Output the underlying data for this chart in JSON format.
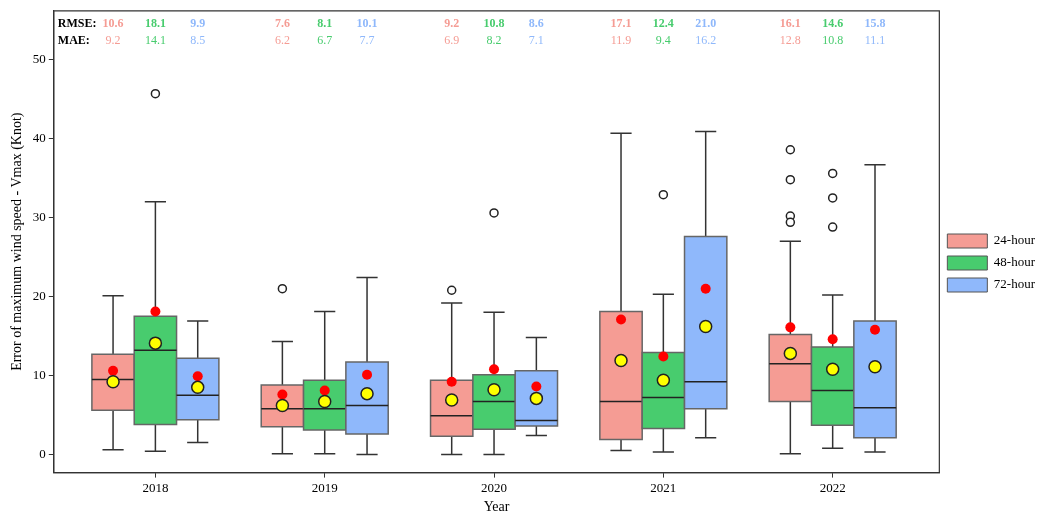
{
  "chart_data": {
    "type": "box",
    "xlabel": "Year",
    "ylabel": "Error of maximum wind speed - Vmax (Knot)",
    "categories": [
      "2018",
      "2019",
      "2020",
      "2021",
      "2022"
    ],
    "ylim": [
      -2.3,
      56.2
    ],
    "yticks": [
      0,
      10,
      20,
      30,
      40,
      50
    ],
    "grid": false,
    "legend": "right",
    "annotations": [
      "RMSE:",
      "MAE:",
      "10.6",
      "18.1",
      "9.9",
      "7.6",
      "8.1",
      "10.1",
      "9.2",
      "10.8",
      "8.6",
      "17.1",
      "12.4",
      "21.0",
      "16.1",
      "14.6",
      "15.8",
      "9.2",
      "14.1",
      "8.5",
      "6.2",
      "6.7",
      "7.7",
      "6.9",
      "8.2",
      "7.1",
      "11.9",
      "9.4",
      "16.2",
      "12.8",
      "10.8",
      "11.1"
    ],
    "series": [
      {
        "name": "24-hour",
        "type": "box",
        "color": "#f59c94",
        "boxes": [
          {
            "low": 0.6,
            "q1": 5.6,
            "median": 9.5,
            "q3": 12.7,
            "high": 20.1
          },
          {
            "low": 0.1,
            "q1": 3.5,
            "median": 5.8,
            "q3": 8.8,
            "high": 14.3,
            "outliers": [
              21.0
            ]
          },
          {
            "low": 0,
            "q1": 2.3,
            "median": 4.9,
            "q3": 9.4,
            "high": 19.2,
            "outliers": [
              20.8
            ]
          },
          {
            "low": 0.5,
            "q1": 1.9,
            "median": 6.7,
            "q3": 18.1,
            "high": 40.7
          },
          {
            "low": 0.1,
            "q1": 6.7,
            "median": 11.5,
            "q3": 15.2,
            "high": 27.0,
            "outliers": [
              38.6,
              34.8,
              30.2,
              29.4
            ]
          }
        ]
      },
      {
        "name": "48-hour",
        "type": "box",
        "color": "#48cc6e",
        "boxes": [
          {
            "low": 0.4,
            "q1": 3.8,
            "median": 13.2,
            "q3": 17.5,
            "high": 32.0,
            "outliers": [
              45.7
            ]
          },
          {
            "low": 0.1,
            "q1": 3.1,
            "median": 5.8,
            "q3": 9.4,
            "high": 18.1
          },
          {
            "low": 0,
            "q1": 3.2,
            "median": 6.7,
            "q3": 10.1,
            "high": 18.0,
            "outliers": [
              30.6
            ]
          },
          {
            "low": 0.3,
            "q1": 3.3,
            "median": 7.2,
            "q3": 12.9,
            "high": 20.3,
            "outliers": [
              32.9
            ]
          },
          {
            "low": 0.8,
            "q1": 3.7,
            "median": 8.1,
            "q3": 13.6,
            "high": 20.2,
            "outliers": [
              35.6,
              32.5,
              28.8
            ]
          }
        ]
      },
      {
        "name": "72-hour",
        "type": "box",
        "color": "#8fb8fb",
        "boxes": [
          {
            "low": 1.5,
            "q1": 4.4,
            "median": 7.5,
            "q3": 12.2,
            "high": 16.9
          },
          {
            "low": 0,
            "q1": 2.6,
            "median": 6.2,
            "q3": 11.7,
            "high": 22.4
          },
          {
            "low": 2.4,
            "q1": 3.6,
            "median": 4.3,
            "q3": 10.6,
            "high": 14.8
          },
          {
            "low": 2.1,
            "q1": 5.8,
            "median": 9.2,
            "q3": 27.6,
            "high": 40.9
          },
          {
            "low": 0.3,
            "q1": 2.1,
            "median": 5.9,
            "q3": 16.9,
            "high": 36.7
          }
        ]
      },
      {
        "type": "scatter",
        "color": "#ff0000",
        "values": [
          10.6,
          7.6,
          9.2,
          17.1,
          16.1
        ]
      },
      {
        "type": "scatter",
        "color": "#ff0000",
        "values": [
          18.1,
          8.1,
          10.8,
          12.4,
          14.6
        ]
      },
      {
        "type": "scatter",
        "color": "#ff0000",
        "values": [
          9.9,
          10.1,
          8.6,
          21.0,
          15.8
        ]
      },
      {
        "type": "scatter",
        "color": "#ffff00",
        "values": [
          9.2,
          6.2,
          6.9,
          11.9,
          12.8
        ]
      },
      {
        "type": "scatter",
        "color": "#ffff00",
        "values": [
          14.1,
          6.7,
          8.2,
          9.4,
          10.8
        ]
      },
      {
        "type": "scatter",
        "color": "#ffff00",
        "values": [
          8.5,
          7.7,
          7.1,
          16.2,
          11.1
        ]
      }
    ]
  }
}
